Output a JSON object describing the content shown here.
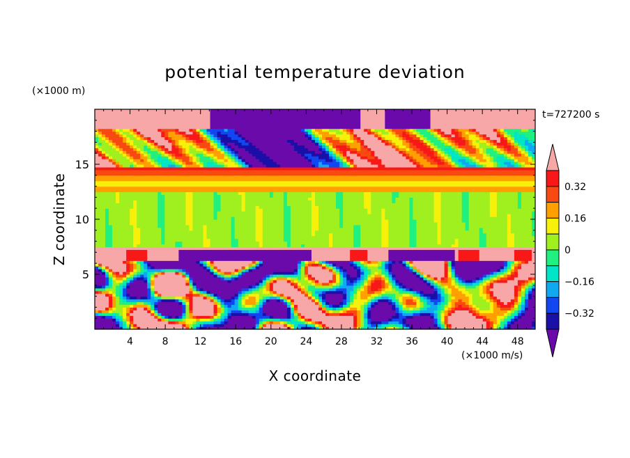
{
  "chart_data": {
    "type": "heatmap",
    "title": "potential temperature deviation",
    "xlabel": "X coordinate",
    "ylabel": "Z coordinate",
    "x_unit": "(×1000 m/s)",
    "y_unit": "(×1000 m)",
    "time_label": "t=727200 s",
    "xlim": [
      0,
      50
    ],
    "ylim": [
      0,
      20
    ],
    "x_ticks": [
      4,
      8,
      12,
      16,
      20,
      24,
      28,
      32,
      36,
      40,
      44,
      48
    ],
    "y_ticks": [
      5,
      10,
      15
    ],
    "colorbar": {
      "levels": [
        -0.4,
        -0.32,
        -0.24,
        -0.16,
        -0.08,
        0,
        0.08,
        0.16,
        0.24,
        0.32,
        0.4
      ],
      "labels": [
        "0.32",
        "0.16",
        "0",
        "−0.16",
        "−0.32"
      ],
      "label_values": [
        0.32,
        0.16,
        0,
        -0.16,
        -0.32
      ],
      "colors": [
        "#6a0aab",
        "#1a0fa6",
        "#1146f0",
        "#10a8f0",
        "#00e4c8",
        "#20f080",
        "#a0f020",
        "#f6f00a",
        "#ffa000",
        "#f84a10",
        "#f81818",
        "#f7a7a7"
      ]
    },
    "bands": [
      {
        "z": [
          0,
          7.3
        ],
        "description": "turbulent mixed layer, values -0.4 to 0.4"
      },
      {
        "z": [
          7.3,
          12.5
        ],
        "value_range": [
          0,
          0.08
        ]
      },
      {
        "z": [
          12.5,
          14.5
        ],
        "value_range": [
          0.08,
          0.4
        ]
      },
      {
        "z": [
          14.5,
          20
        ],
        "value_range": [
          -0.4,
          0.4
        ]
      }
    ]
  }
}
